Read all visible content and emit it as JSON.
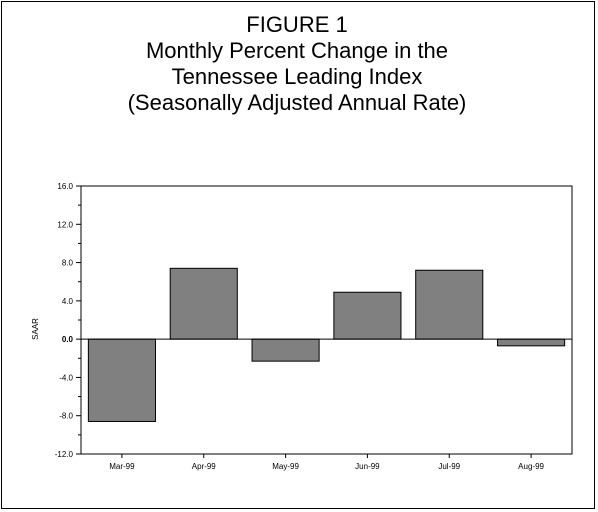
{
  "chart_data": {
    "type": "bar",
    "title_lines": [
      "FIGURE 1",
      "Monthly Percent Change in the",
      "Tennessee Leading Index",
      "(Seasonally Adjusted Annual Rate)"
    ],
    "xlabel": "",
    "ylabel": "SAAR",
    "categories": [
      "Mar-99",
      "Apr-99",
      "May-99",
      "Jun-99",
      "Jul-99",
      "Aug-99"
    ],
    "values": [
      -8.6,
      7.4,
      -2.3,
      4.9,
      7.2,
      -0.7
    ],
    "ylim": [
      -12.0,
      16.0
    ],
    "yticks": [
      "16.0",
      "12.0",
      "8.0",
      "4.0",
      "0.0",
      "-4.0",
      "-8.0",
      "-12.0"
    ],
    "bar_color": "#808080",
    "grid": false
  }
}
